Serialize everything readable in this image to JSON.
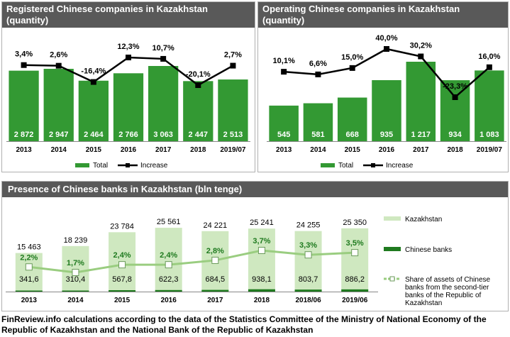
{
  "colors": {
    "header_bg": "#595959",
    "green": "#339933",
    "light_green": "#cfe8c0",
    "dark_green": "#1f7a1f",
    "share_line": "#9acd80"
  },
  "panels": [
    {
      "title": "Registered Chinese companies in Kazakhstan",
      "subtitle": "(quantity)"
    },
    {
      "title": "Operating Chinese companies in Kazakhstan",
      "subtitle": "(quantity)"
    },
    {
      "title": "Presence of Chinese banks in Kazakhstan (bln tenge)"
    }
  ],
  "footer": "FinReview.info  calculations according to the data of the Statistics Committee of the Ministry of National Economy of the Republic of Kazakhstan and the National Bank of the Republic of Kazakhstan",
  "chart_data": [
    {
      "type": "bar",
      "title": "Registered Chinese companies in Kazakhstan (quantity)",
      "categories": [
        "2013",
        "2014",
        "2015",
        "2016",
        "2017",
        "2018",
        "2019/07"
      ],
      "series": [
        {
          "name": "Total",
          "type": "bar",
          "values": [
            2872,
            2947,
            2464,
            2766,
            3063,
            2447,
            2513
          ],
          "labels": [
            "2 872",
            "2 947",
            "2 464",
            "2 766",
            "3 063",
            "2 447",
            "2 513"
          ]
        },
        {
          "name": "Increase",
          "type": "line",
          "values": [
            3.4,
            2.6,
            -16.4,
            12.3,
            10.7,
            -20.1,
            2.7
          ],
          "labels": [
            "3,4%",
            "2,6%",
            "-16,4%",
            "12,3%",
            "10,7%",
            "-20,1%",
            "2,7%"
          ]
        }
      ],
      "legend": "bottom"
    },
    {
      "type": "bar",
      "title": "Operating Chinese companies in Kazakhstan (quantity)",
      "categories": [
        "2013",
        "2014",
        "2015",
        "2016",
        "2017",
        "2018",
        "2019/07"
      ],
      "series": [
        {
          "name": "Total",
          "type": "bar",
          "values": [
            545,
            581,
            668,
            935,
            1217,
            934,
            1083
          ],
          "labels": [
            "545",
            "581",
            "668",
            "935",
            "1 217",
            "934",
            "1 083"
          ]
        },
        {
          "name": "Increase",
          "type": "line",
          "values": [
            10.1,
            6.6,
            15.0,
            40.0,
            30.2,
            -23.3,
            16.0
          ],
          "labels": [
            "10,1%",
            "6,6%",
            "15,0%",
            "40,0%",
            "30,2%",
            "-23,3%",
            "16,0%"
          ]
        }
      ],
      "legend": "bottom"
    },
    {
      "type": "bar",
      "title": "Presence of Chinese banks in Kazakhstan (bln tenge)",
      "categories": [
        "2013",
        "2014",
        "2015",
        "2016",
        "2017",
        "2018",
        "2018/06",
        "2019/06"
      ],
      "series": [
        {
          "name": "Kazakhstan",
          "type": "bar",
          "values": [
            15463,
            18239,
            23784,
            25561,
            24221,
            25241,
            24255,
            25350
          ],
          "labels": [
            "15 463",
            "18 239",
            "23 784",
            "25 561",
            "24 221",
            "25 241",
            "24 255",
            "25 350"
          ]
        },
        {
          "name": "Chinese banks",
          "type": "bar",
          "values": [
            341.6,
            310.4,
            567.8,
            622.3,
            684.5,
            938.1,
            803.7,
            886.2
          ],
          "labels": [
            "341,6",
            "310,4",
            "567,8",
            "622,3",
            "684,5",
            "938,1",
            "803,7",
            "886,2"
          ]
        },
        {
          "name": "Share of assets of Chinese banks from the second-tier banks of the Republic of Kazakhstan",
          "type": "line",
          "values": [
            2.2,
            1.7,
            2.4,
            2.4,
            2.8,
            3.7,
            3.3,
            3.5
          ],
          "labels": [
            "2,2%",
            "1,7%",
            "2,4%",
            "2,4%",
            "2,8%",
            "3,7%",
            "3,3%",
            "3,5%"
          ]
        }
      ],
      "legend": "right"
    }
  ]
}
